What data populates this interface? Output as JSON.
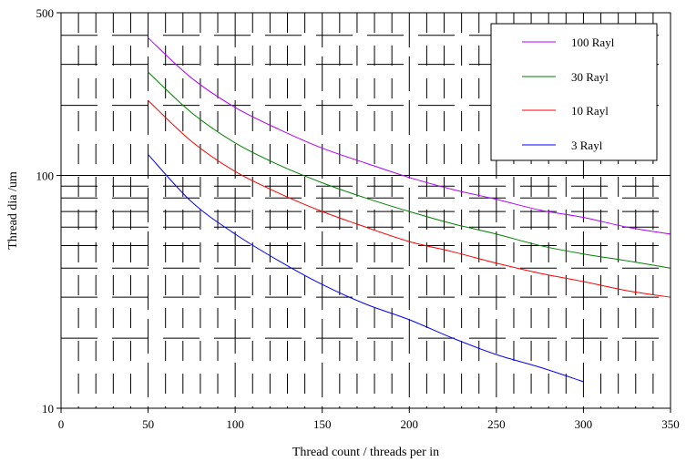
{
  "chart_data": {
    "type": "line",
    "title": "",
    "xlabel": "Thread count / threads per in",
    "ylabel": "Thread dia /um",
    "xlim": [
      0,
      350
    ],
    "ylim": [
      10,
      500
    ],
    "yscale": "log",
    "grid": true,
    "legend_position": "top-right",
    "x_ticks": [
      "0",
      "50",
      "100",
      "150",
      "200",
      "250",
      "300",
      "350"
    ],
    "y_ticks": [
      "10",
      "100",
      "500"
    ],
    "series": [
      {
        "name": "100 Rayl",
        "color": "#b000ff",
        "x": [
          50,
          75,
          100,
          125,
          150,
          175,
          200,
          225,
          250,
          275,
          300,
          325,
          350
        ],
        "y": [
          390,
          262,
          196,
          158,
          131,
          113,
          98,
          87,
          79,
          71,
          66,
          60,
          56
        ]
      },
      {
        "name": "30 Rayl",
        "color": "#008000",
        "x": [
          50,
          75,
          100,
          125,
          150,
          175,
          200,
          225,
          250,
          275,
          300,
          325,
          350
        ],
        "y": [
          278,
          186,
          138,
          111,
          93,
          80,
          70,
          62,
          56,
          50,
          46,
          43,
          40
        ]
      },
      {
        "name": "10 Rayl",
        "color": "#ff0000",
        "x": [
          50,
          75,
          100,
          125,
          150,
          175,
          200,
          225,
          250,
          275,
          300,
          325,
          350
        ],
        "y": [
          210,
          140,
          104,
          84,
          70,
          60,
          52,
          47,
          42,
          38,
          35,
          32,
          30
        ]
      },
      {
        "name": "3 Rayl",
        "color": "#0000ff",
        "x": [
          50,
          75,
          100,
          125,
          150,
          175,
          200,
          225,
          250,
          275,
          300
        ],
        "y": [
          123,
          77,
          56,
          43,
          34,
          28,
          24,
          20,
          17,
          15,
          13
        ]
      }
    ]
  }
}
